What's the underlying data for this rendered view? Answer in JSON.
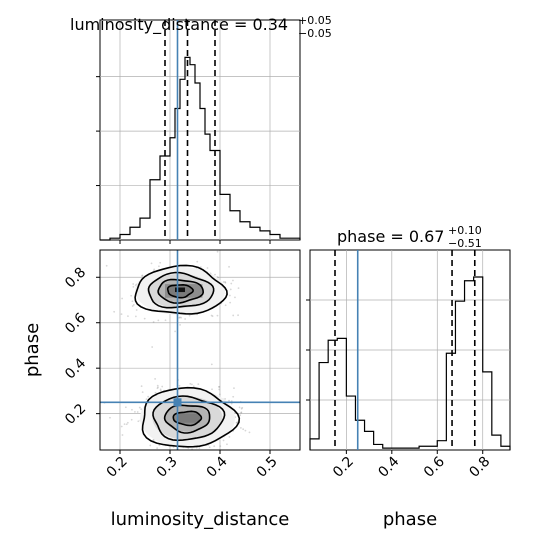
{
  "chart_data": {
    "type": "corner",
    "parameters": [
      "luminosity_distance",
      "phase"
    ],
    "truths": {
      "luminosity_distance": 0.315,
      "phase": 0.25
    },
    "colors": {
      "truth": "#4682b4",
      "hist": "#000000",
      "grid": "#b0b0b0",
      "samples": "#8c8c8c"
    },
    "grid": true,
    "panels": [
      {
        "id": "hist_luminosity_distance",
        "title": {
          "main": "luminosity_distance = 0.34",
          "sup": "+0.05",
          "sub": "−0.05"
        },
        "xlim": [
          0.16,
          0.56
        ],
        "quantiles": [
          0.29,
          0.335,
          0.39
        ],
        "bin_edges": [
          0.16,
          0.18,
          0.2,
          0.22,
          0.24,
          0.26,
          0.28,
          0.3,
          0.31,
          0.32,
          0.33,
          0.34,
          0.35,
          0.36,
          0.37,
          0.38,
          0.4,
          0.42,
          0.44,
          0.46,
          0.48,
          0.5,
          0.52,
          0.54,
          0.56
        ],
        "counts": [
          0,
          0.01,
          0.03,
          0.07,
          0.12,
          0.33,
          0.46,
          0.56,
          0.72,
          0.88,
          1.0,
          0.96,
          0.86,
          0.72,
          0.58,
          0.49,
          0.25,
          0.16,
          0.1,
          0.07,
          0.05,
          0.03,
          0.01,
          0.01
        ]
      },
      {
        "id": "hist_phase",
        "title": {
          "main": "phase = 0.67",
          "sup": "+0.10",
          "sub": "−0.51"
        },
        "xlim": [
          0.04,
          0.92
        ],
        "quantiles": [
          0.15,
          0.665,
          0.765
        ],
        "xticks": [
          "0.2",
          "0.4",
          "0.6",
          "0.8"
        ],
        "xlabel": "phase",
        "bin_edges": [
          0.04,
          0.08,
          0.12,
          0.16,
          0.2,
          0.24,
          0.28,
          0.32,
          0.36,
          0.4,
          0.44,
          0.48,
          0.52,
          0.56,
          0.6,
          0.64,
          0.68,
          0.72,
          0.76,
          0.8,
          0.84,
          0.88,
          0.92
        ],
        "counts": [
          0.06,
          0.47,
          0.59,
          0.6,
          0.29,
          0.16,
          0.1,
          0.03,
          0.01,
          0.01,
          0.01,
          0.01,
          0.02,
          0.02,
          0.05,
          0.52,
          0.8,
          0.91,
          0.93,
          0.42,
          0.08,
          0.02
        ]
      },
      {
        "id": "scatter_phase_vs_distance",
        "xlim": [
          0.16,
          0.56
        ],
        "ylim": [
          0.04,
          0.92
        ],
        "xticks": [
          "0.2",
          "0.3",
          "0.4",
          "0.5"
        ],
        "yticks": [
          "0.2",
          "0.4",
          "0.6",
          "0.8"
        ],
        "xlabel": "luminosity_distance",
        "ylabel": "phase",
        "modes": [
          {
            "center": [
              0.32,
              0.74
            ],
            "contour_radii": [
              [
                0.09,
                0.105
              ],
              [
                0.065,
                0.075
              ],
              [
                0.045,
                0.05
              ],
              [
                0.025,
                0.028
              ]
            ],
            "dense_box": [
              0.29,
              0.365,
              0.71,
              0.77
            ],
            "core_box": [
              0.31,
              0.33,
              0.735,
              0.755
            ]
          },
          {
            "center": [
              0.335,
              0.18
            ],
            "contour_radii": [
              [
                0.095,
                0.13
              ],
              [
                0.07,
                0.095
              ],
              [
                0.045,
                0.06
              ],
              [
                0.028,
                0.03
              ]
            ],
            "dense_box": [
              0.315,
              0.36,
              0.16,
              0.2
            ]
          }
        ]
      }
    ]
  }
}
